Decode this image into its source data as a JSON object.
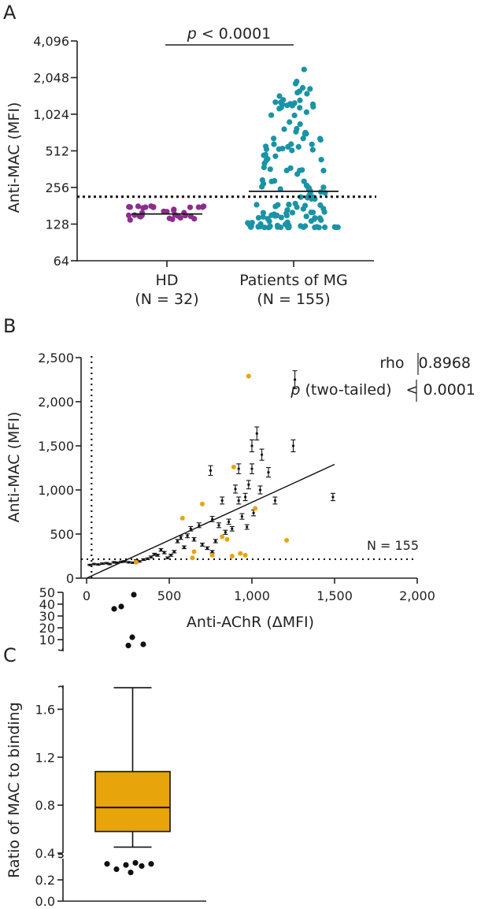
{
  "panels": {
    "a": {
      "label": "A"
    },
    "b": {
      "label": "B"
    },
    "c": {
      "label": "C"
    }
  },
  "chart_data": [
    {
      "type": "scatter",
      "subtype": "dot-plot",
      "title": "",
      "ylabel": "Anti-MAC (MFI)",
      "yscale": "log2",
      "ylim": [
        64,
        4096
      ],
      "yticks": [
        64,
        128,
        256,
        512,
        1024,
        2048,
        4096
      ],
      "ytick_labels": [
        "64",
        "128",
        "256",
        "512",
        "1,024",
        "2,048",
        "4,096"
      ],
      "categories": [
        {
          "name": "HD",
          "n_label": "(N = 32)",
          "color": "#8b2e8e",
          "n": 32,
          "min": 138,
          "max": 180,
          "median_line": 155
        },
        {
          "name": "Patients of MG",
          "n_label": "(N = 155)",
          "color": "#1a93a6",
          "n": 155,
          "min": 120,
          "max": 2500,
          "median_line": 238
        }
      ],
      "threshold": 215,
      "comparison": {
        "p_symbol": "p",
        "p_text": " < 0.0001"
      }
    },
    {
      "type": "scatter",
      "title": "",
      "xlabel": "Anti-AChR (ΔMFI)",
      "ylabel": "Anti-MAC (MFI)",
      "xlim": [
        0,
        2000
      ],
      "ylim": [
        0,
        2500
      ],
      "xticks": [
        0,
        500,
        1000,
        1500,
        2000
      ],
      "xtick_labels": [
        "0",
        "500",
        "1,000",
        "1,500",
        "2,000"
      ],
      "yticks": [
        0,
        500,
        1000,
        1500,
        2000,
        2500
      ],
      "ytick_labels": [
        "0",
        "500",
        "1,000",
        "1,500",
        "2,000",
        "2,500"
      ],
      "threshold_x": 30,
      "threshold_y": 215,
      "regression": {
        "x1": 0,
        "y1": 0,
        "x2": 1500,
        "y2": 1290
      },
      "stats": {
        "rho_label": "rho",
        "rho": "0.8968",
        "p_symbol": "p",
        "p_label": " (two-tailed)",
        "p_value": "< 0.0001"
      },
      "n_label": "N = 155",
      "points_black": [
        [
          20,
          150
        ],
        [
          45,
          160
        ],
        [
          70,
          155
        ],
        [
          95,
          165
        ],
        [
          120,
          170
        ],
        [
          140,
          160
        ],
        [
          165,
          180
        ],
        [
          185,
          175
        ],
        [
          210,
          185
        ],
        [
          230,
          190
        ],
        [
          255,
          180
        ],
        [
          280,
          175
        ],
        [
          300,
          200
        ],
        [
          320,
          190
        ],
        [
          345,
          210
        ],
        [
          370,
          220
        ],
        [
          390,
          240
        ],
        [
          410,
          270
        ],
        [
          430,
          260
        ],
        [
          450,
          320
        ],
        [
          470,
          290
        ],
        [
          490,
          230
        ],
        [
          510,
          260
        ],
        [
          530,
          300
        ],
        [
          550,
          420
        ],
        [
          570,
          460
        ],
        [
          590,
          350
        ],
        [
          610,
          480
        ],
        [
          630,
          560
        ],
        [
          650,
          440
        ],
        [
          680,
          600
        ],
        [
          700,
          380
        ],
        [
          730,
          340
        ],
        [
          760,
          670
        ],
        [
          780,
          420
        ],
        [
          800,
          600
        ],
        [
          820,
          880
        ],
        [
          840,
          520
        ],
        [
          860,
          640
        ],
        [
          880,
          560
        ],
        [
          900,
          1010
        ],
        [
          920,
          880
        ],
        [
          940,
          700
        ],
        [
          960,
          920
        ],
        [
          980,
          1060
        ],
        [
          1000,
          1240
        ],
        [
          1030,
          1640
        ],
        [
          1060,
          1400
        ],
        [
          1100,
          1200
        ],
        [
          1140,
          880
        ],
        [
          1250,
          1500
        ],
        [
          1260,
          2250
        ],
        [
          1490,
          920
        ],
        [
          750,
          1220
        ],
        [
          1000,
          1500
        ],
        [
          920,
          1240
        ],
        [
          760,
          300
        ],
        [
          970,
          580
        ],
        [
          1010,
          740
        ],
        [
          1050,
          1000
        ]
      ],
      "points_orange": [
        [
          300,
          180
        ],
        [
          580,
          680
        ],
        [
          640,
          230
        ],
        [
          650,
          300
        ],
        [
          700,
          840
        ],
        [
          760,
          260
        ],
        [
          820,
          470
        ],
        [
          880,
          250
        ],
        [
          890,
          1260
        ],
        [
          930,
          280
        ],
        [
          960,
          260
        ],
        [
          980,
          2290
        ],
        [
          1020,
          790
        ],
        [
          1210,
          430
        ],
        [
          850,
          440
        ]
      ]
    },
    {
      "type": "box",
      "title": "",
      "ylabel": "Ratio of MAC to binding",
      "segments": [
        {
          "range": [
            0.0,
            0.4
          ],
          "ticks": [
            "0.0",
            "0.2"
          ]
        },
        {
          "range": [
            0.4,
            1.8
          ],
          "ticks": [
            "0.4",
            "0.8",
            "1.2",
            "1.6"
          ]
        },
        {
          "range": [
            0,
            50
          ],
          "ticks": [
            "10",
            "20",
            "30",
            "40",
            "50"
          ]
        }
      ],
      "box": {
        "whisker_low": 0.45,
        "q1": 0.58,
        "median": 0.78,
        "q3": 1.08,
        "whisker_high": 1.78,
        "color": "#e8a40b"
      },
      "outliers_high": [
        5,
        6,
        12,
        36,
        38,
        48
      ],
      "outliers_low": [
        0.27,
        0.3,
        0.33,
        0.34,
        0.35,
        0.35,
        0.36
      ]
    }
  ]
}
